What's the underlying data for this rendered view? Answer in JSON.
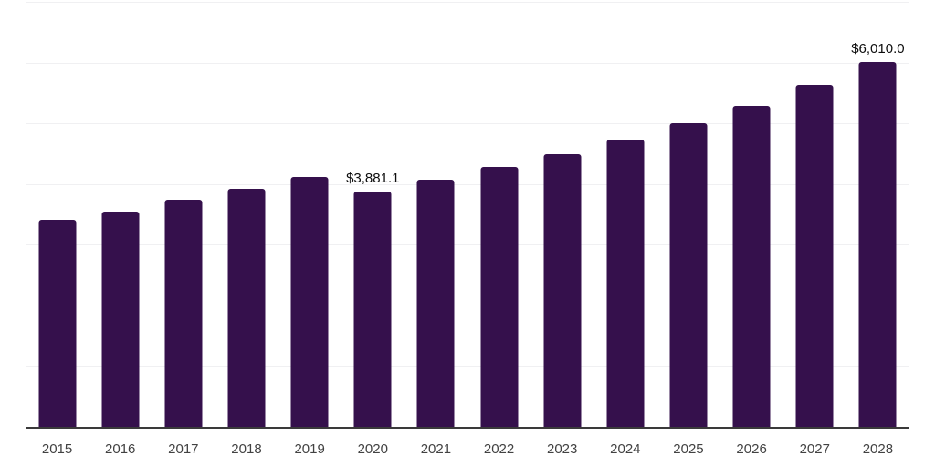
{
  "chart_data": {
    "type": "bar",
    "title": "",
    "xlabel": "",
    "ylabel": "",
    "categories": [
      "2015",
      "2016",
      "2017",
      "2018",
      "2019",
      "2020",
      "2021",
      "2022",
      "2023",
      "2024",
      "2025",
      "2026",
      "2027",
      "2028"
    ],
    "values": [
      3410,
      3545,
      3745,
      3915,
      4115,
      3881.1,
      4065,
      4280,
      4490,
      4725,
      5000,
      5295,
      5635,
      6010.0
    ],
    "data_labels": [
      "",
      "",
      "",
      "",
      "",
      "$3,881.1",
      "",
      "",
      "",
      "",
      "",
      "",
      "",
      "$6,010.0"
    ],
    "ylim": [
      0,
      7000
    ],
    "grid_step": 1000,
    "grid": true,
    "legend": false,
    "y_tick_labels_visible": false,
    "colors": {
      "background": "#ffffff",
      "bar": "#35104C",
      "gridline": "#f0f0f2",
      "axis_line": "#3a3a3a",
      "tick_label": "#424242",
      "data_label": "#0d0d0d"
    }
  }
}
